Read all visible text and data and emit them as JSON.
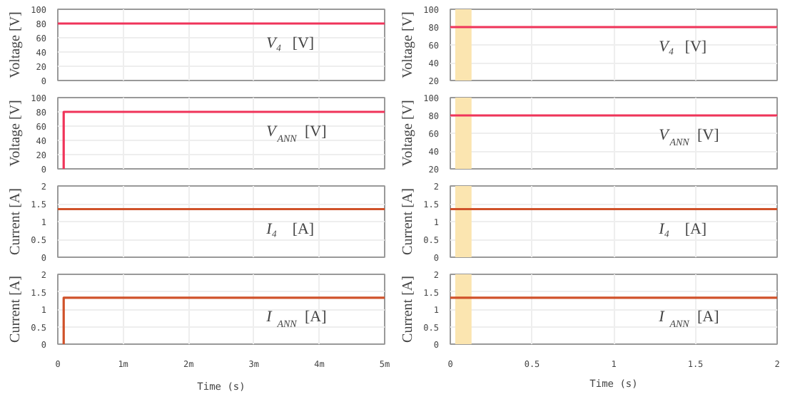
{
  "chart_data": [
    {
      "type": "line",
      "ylabel": "Voltage [V]",
      "xlim": [
        0,
        5
      ],
      "xticks": [
        0,
        1,
        2,
        3,
        4,
        5
      ],
      "ylim": [
        0,
        100
      ],
      "yticks": [
        0,
        20,
        40,
        60,
        80,
        100
      ],
      "grid": true,
      "tick_labels": "y",
      "series": [
        {
          "color": "#f0345a",
          "x": [
            0,
            5
          ],
          "values": [
            80,
            80
          ]
        }
      ],
      "annotations": [
        "V₄ [V]"
      ]
    },
    {
      "type": "line",
      "ylabel": "Voltage [V]",
      "xlim": [
        0,
        2
      ],
      "xticks": [
        0,
        0.5,
        1,
        1.5,
        2
      ],
      "ylim": [
        20,
        100
      ],
      "yticks": [
        20,
        40,
        60,
        80,
        100
      ],
      "grid": true,
      "tick_labels": "y",
      "series": [
        {
          "color": "#f0345a",
          "x": [
            0,
            2
          ],
          "values": [
            80,
            80
          ]
        }
      ],
      "bands": [
        {
          "axis": "x",
          "from": 0.03,
          "to": 0.13,
          "color": "#fbe5b0"
        }
      ],
      "annotations": [
        "V₄ [V]"
      ]
    },
    {
      "type": "line",
      "ylabel": "Voltage [V]",
      "xlim": [
        0,
        5
      ],
      "xticks": [
        0,
        1,
        2,
        3,
        4,
        5
      ],
      "ylim": [
        0,
        100
      ],
      "yticks": [
        0,
        20,
        40,
        60,
        80,
        100
      ],
      "grid": true,
      "tick_labels": "y",
      "series": [
        {
          "color": "#f0345a",
          "x": [
            0.09,
            0.09,
            5
          ],
          "values": [
            0,
            80,
            80
          ]
        }
      ],
      "annotations": [
        "V$_{ANN}$ [V]"
      ]
    },
    {
      "type": "line",
      "ylabel": "Voltage [V]",
      "xlim": [
        0,
        2
      ],
      "xticks": [
        0,
        0.5,
        1,
        1.5,
        2
      ],
      "ylim": [
        20,
        100
      ],
      "yticks": [
        20,
        40,
        60,
        80,
        100
      ],
      "grid": true,
      "tick_labels": "y",
      "series": [
        {
          "color": "#f0345a",
          "x": [
            0,
            2
          ],
          "values": [
            80,
            80
          ]
        }
      ],
      "bands": [
        {
          "axis": "x",
          "from": 0.03,
          "to": 0.13,
          "color": "#fbe5b0"
        }
      ],
      "annotations": [
        "V$_{ANN}$ [V]"
      ]
    },
    {
      "type": "line",
      "ylabel": "Current [A]",
      "xlim": [
        0,
        5
      ],
      "xticks": [
        0,
        1,
        2,
        3,
        4,
        5
      ],
      "ylim": [
        0,
        2
      ],
      "yticks": [
        0,
        0.5,
        1,
        1.5,
        2
      ],
      "grid": true,
      "tick_labels": "y",
      "series": [
        {
          "color": "#d0522a",
          "x": [
            0,
            5
          ],
          "values": [
            1.35,
            1.35
          ]
        }
      ],
      "annotations": [
        "I₄ [A]"
      ]
    },
    {
      "type": "line",
      "ylabel": "Current [A]",
      "xlim": [
        0,
        2
      ],
      "xticks": [
        0,
        0.5,
        1,
        1.5,
        2
      ],
      "ylim": [
        0,
        2
      ],
      "yticks": [
        0,
        0.5,
        1,
        1.5,
        2
      ],
      "grid": true,
      "tick_labels": "y",
      "series": [
        {
          "color": "#d0522a",
          "x": [
            0,
            2
          ],
          "values": [
            1.35,
            1.35
          ]
        }
      ],
      "bands": [
        {
          "axis": "x",
          "from": 0.03,
          "to": 0.13,
          "color": "#fbe5b0"
        }
      ],
      "annotations": [
        "I₄ [A]"
      ]
    },
    {
      "type": "line",
      "ylabel": "Current [A]",
      "xlabel": "Time (s)",
      "xlim": [
        0,
        5
      ],
      "xticks": [
        0,
        {
          "value": 1,
          "label": "1m"
        },
        {
          "value": 2,
          "label": "2m"
        },
        {
          "value": 3,
          "label": "3m"
        },
        {
          "value": 4,
          "label": "4m"
        },
        {
          "value": 5,
          "label": "5m"
        }
      ],
      "ylim": [
        0,
        2
      ],
      "yticks": [
        0,
        0.5,
        1,
        1.5,
        2
      ],
      "grid": true,
      "series": [
        {
          "color": "#d0522a",
          "x": [
            0.09,
            0.09,
            5
          ],
          "values": [
            0,
            1.33,
            1.33
          ]
        }
      ],
      "annotations": [
        "I$_{ANN}$ [A]"
      ]
    },
    {
      "type": "line",
      "ylabel": "Current [A]",
      "xlabel": "Time (s)",
      "xlim": [
        0,
        2
      ],
      "xticks": [
        0,
        0.5,
        1,
        1.5,
        2
      ],
      "ylim": [
        0,
        2
      ],
      "yticks": [
        0,
        0.5,
        1,
        1.5,
        2
      ],
      "grid": true,
      "series": [
        {
          "color": "#d0522a",
          "x": [
            0,
            2
          ],
          "values": [
            1.33,
            1.33
          ]
        }
      ],
      "bands": [
        {
          "axis": "x",
          "from": 0.03,
          "to": 0.13,
          "color": "#fbe5b0"
        }
      ],
      "annotations": [
        "I$_{ANN}$ [A]"
      ]
    }
  ]
}
